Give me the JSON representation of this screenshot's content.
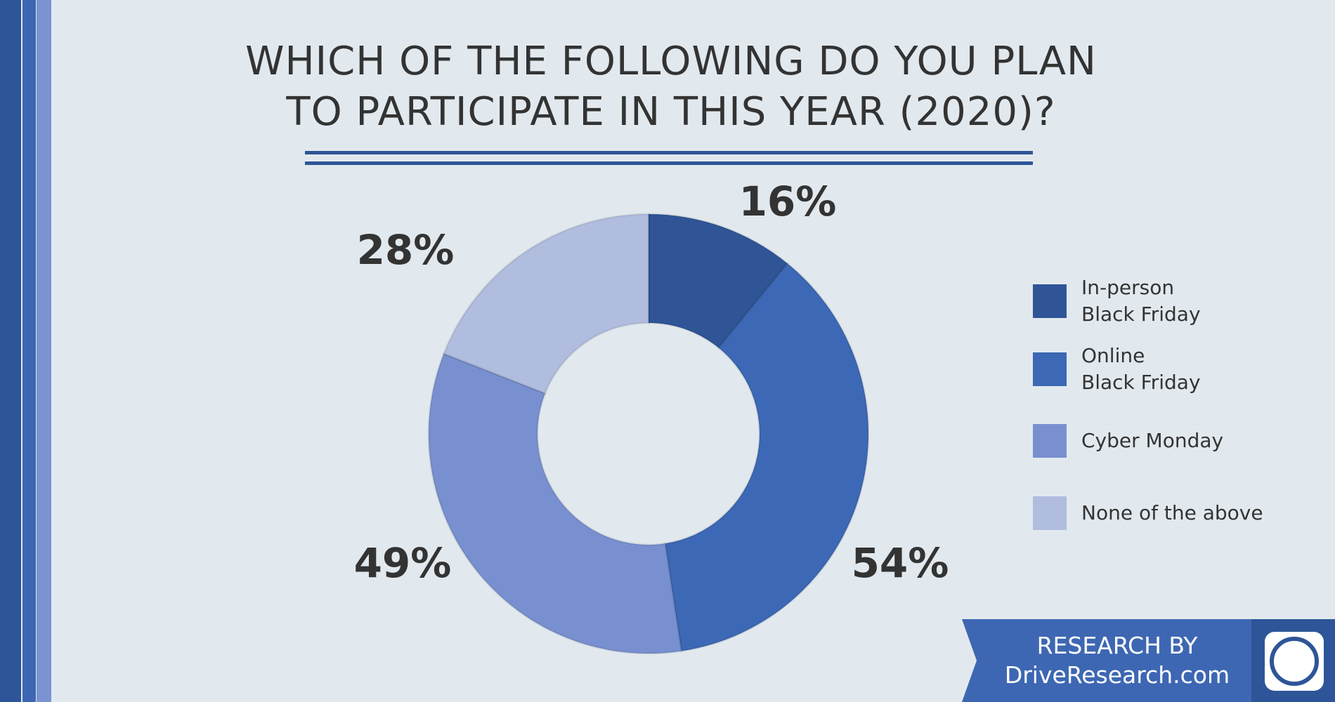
{
  "chart_data": {
    "type": "donut",
    "title": "WHICH OF THE FOLLOWING DO YOU PLAN\nTO PARTICIPATE IN THIS YEAR (2020)?",
    "categories": [
      "In-person\nBlack Friday",
      "Online\nBlack Friday",
      "Cyber Monday",
      "None of the above"
    ],
    "values": [
      16,
      54,
      49,
      28
    ],
    "value_labels": [
      "16%",
      "54%",
      "49%",
      "28%"
    ],
    "colors": [
      "#2f5597",
      "#3c68b5",
      "#7890cf",
      "#b0bddf"
    ]
  },
  "footer": {
    "line1": "RESEARCH BY",
    "line2": "DriveResearch.com"
  }
}
